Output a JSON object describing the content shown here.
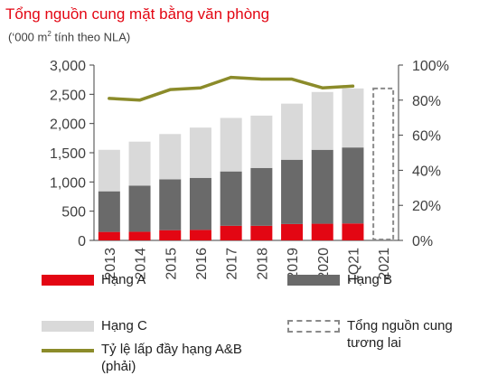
{
  "header": {
    "title": "Tổng nguồn cung mặt bằng văn phòng",
    "subtitle_pre": "(‘000 m",
    "subtitle_sup": "2",
    "subtitle_post": " tính theo NLA)"
  },
  "colors": {
    "hang_a": "#e30613",
    "hang_b": "#6a6a6a",
    "hang_c": "#d9d9d9",
    "occupancy": "#8b8b2a",
    "future": "#8a8a8a",
    "axis_text": "#404040"
  },
  "chart_data": {
    "type": "bar",
    "stacked": true,
    "title": "Tổng nguồn cung mặt bằng văn phòng",
    "subtitle": "(‘000 m2 tính theo NLA)",
    "categories": [
      "2013",
      "2014",
      "2015",
      "2016",
      "2017",
      "2018",
      "2019",
      "2020",
      "1Q21",
      "2021"
    ],
    "series": [
      {
        "name": "Hạng A",
        "values": [
          145,
          148,
          175,
          180,
          250,
          250,
          280,
          285,
          290,
          null
        ]
      },
      {
        "name": "Hạng B",
        "values": [
          695,
          790,
          870,
          890,
          930,
          990,
          1100,
          1265,
          1300,
          null
        ]
      },
      {
        "name": "Hạng C",
        "values": [
          710,
          752,
          775,
          860,
          915,
          895,
          960,
          990,
          1010,
          null
        ]
      },
      {
        "name": "Tổng nguồn cung tương lai",
        "values": [
          null,
          null,
          null,
          null,
          null,
          null,
          null,
          null,
          null,
          2600
        ]
      }
    ],
    "line_series": {
      "name": "Tỷ lệ lấp đầy hạng A&B (phải)",
      "axis": "right",
      "values": [
        0.81,
        0.8,
        0.86,
        0.87,
        0.93,
        0.92,
        0.92,
        0.87,
        0.88,
        null
      ]
    },
    "y_left": {
      "lim": [
        0,
        3000
      ],
      "ticks": [
        "0",
        "500",
        "1,000",
        "1,500",
        "2,000",
        "2,500",
        "3,000"
      ]
    },
    "y_right": {
      "lim": [
        0,
        1
      ],
      "ticks": [
        "0%",
        "20%",
        "40%",
        "60%",
        "80%",
        "100%"
      ]
    },
    "grid": false,
    "legend": "bottom"
  },
  "legend": {
    "hang_a": "Hạng A",
    "hang_b": "Hạng B",
    "hang_c": "Hạng C",
    "future_line1": "Tổng nguồn cung",
    "future_line2": "tương lai",
    "occ_line1": "Tỷ lệ lấp đầy hạng A&B",
    "occ_line2": "(phải)"
  }
}
